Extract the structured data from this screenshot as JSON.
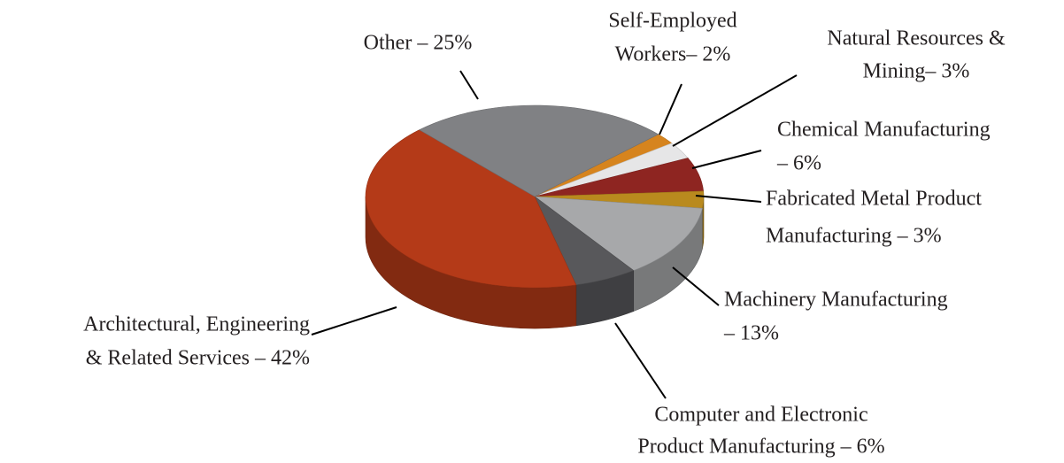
{
  "chart_data": {
    "type": "pie3d",
    "values": [
      2,
      3,
      6,
      3,
      13,
      6,
      42,
      25
    ],
    "value_labels": [
      [
        "Self-Employed",
        "Workers– 2%"
      ],
      [
        "Natural Resources &",
        "Mining– 3%"
      ],
      [
        "Chemical Manufacturing",
        "– 6%"
      ],
      [
        "Fabricated Metal Product",
        "Manufacturing – 3%"
      ],
      [
        "Machinery Manufacturing",
        "– 13%"
      ],
      [
        "Computer and Electronic",
        "Product Manufacturing – 6%"
      ],
      [
        "Architectural, Engineering",
        "& Related Services – 42%"
      ],
      [
        "Other – 25%"
      ]
    ],
    "colors": [
      "#d6841e",
      "#e6e6e7",
      "#8e2521",
      "#b98a1e",
      "#a7a8aa",
      "#58585b",
      "#b43a18",
      "#808184"
    ]
  }
}
